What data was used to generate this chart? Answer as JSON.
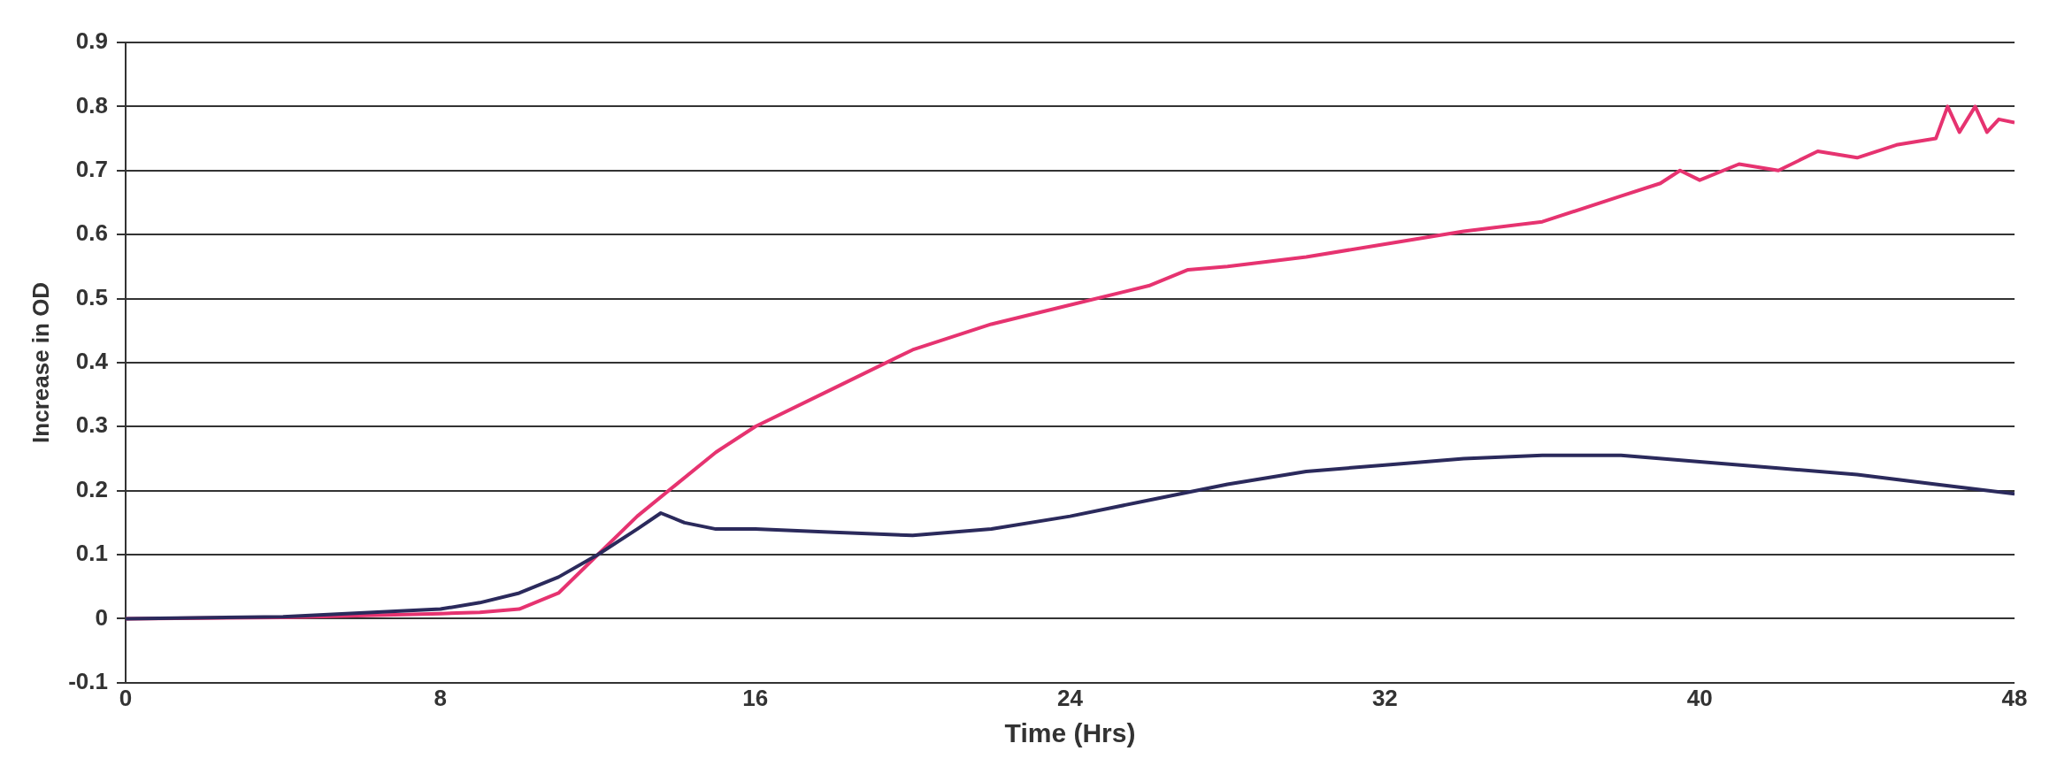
{
  "chart_data": {
    "type": "line",
    "xlabel": "Time (Hrs)",
    "ylabel": "Increase in OD",
    "xlim": [
      0,
      48
    ],
    "xticks": [
      0,
      8,
      16,
      24,
      32,
      40,
      48
    ],
    "ylim": [
      -0.1,
      0.9
    ],
    "yticks": [
      -0.1,
      0,
      0.1,
      0.2,
      0.3,
      0.4,
      0.5,
      0.6,
      0.7,
      0.8,
      0.9
    ],
    "grid": "y",
    "marker": "none",
    "line_style": "solid",
    "series": [
      {
        "color": "#2b2a5c",
        "x": [
          0,
          4,
          8,
          9,
          10,
          11,
          12,
          13,
          13.6,
          14.2,
          15,
          16,
          18,
          20,
          22,
          24,
          26,
          28,
          30,
          32,
          34,
          36,
          38,
          40,
          42,
          44,
          46,
          48
        ],
        "values": [
          0,
          0.003,
          0.015,
          0.025,
          0.04,
          0.065,
          0.1,
          0.14,
          0.165,
          0.15,
          0.14,
          0.14,
          0.135,
          0.13,
          0.14,
          0.16,
          0.185,
          0.21,
          0.23,
          0.24,
          0.25,
          0.255,
          0.255,
          0.245,
          0.235,
          0.225,
          0.21,
          0.195
        ]
      },
      {
        "color": "#e63370",
        "x": [
          0,
          4,
          8,
          9,
          10,
          11,
          12,
          13,
          14,
          15,
          16,
          18,
          20,
          22,
          24,
          26,
          27,
          28,
          30,
          32,
          34,
          36,
          38,
          39,
          39.5,
          40,
          41,
          42,
          43,
          44,
          45,
          46,
          46.3,
          46.6,
          47,
          47.3,
          47.6,
          48
        ],
        "values": [
          0,
          0.002,
          0.008,
          0.01,
          0.015,
          0.04,
          0.1,
          0.16,
          0.21,
          0.26,
          0.3,
          0.36,
          0.42,
          0.46,
          0.49,
          0.52,
          0.545,
          0.55,
          0.565,
          0.585,
          0.605,
          0.62,
          0.66,
          0.68,
          0.7,
          0.685,
          0.71,
          0.7,
          0.73,
          0.72,
          0.74,
          0.75,
          0.8,
          0.76,
          0.8,
          0.76,
          0.78,
          0.775
        ]
      }
    ]
  }
}
